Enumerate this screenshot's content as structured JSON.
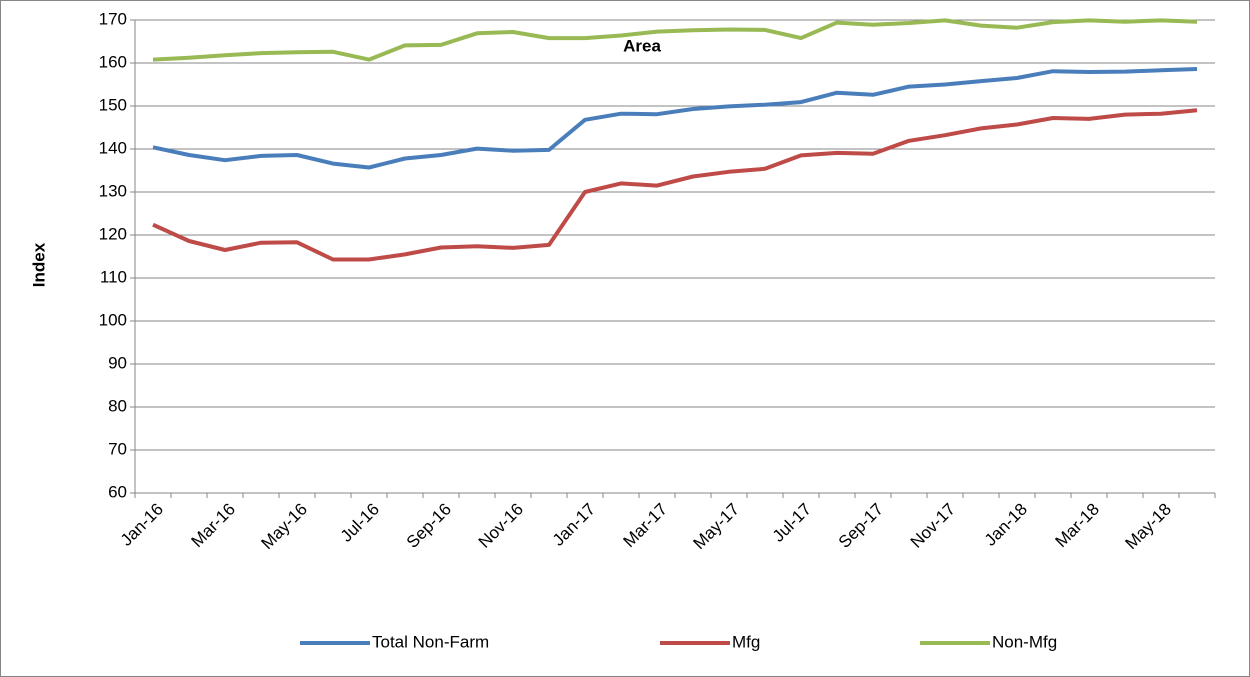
{
  "chart_data": {
    "type": "line",
    "title": "Area",
    "y_label": "Index",
    "categories": [
      "Jan-16",
      null,
      "Mar-16",
      null,
      "May-16",
      null,
      "Jul-16",
      null,
      "Sep-16",
      null,
      "Nov-16",
      null,
      "Jan-17",
      null,
      "Mar-17",
      null,
      "May-17",
      null,
      "Jul-17",
      null,
      "Sep-17",
      null,
      "Nov-17",
      null,
      "Jan-18",
      null,
      "Mar-18",
      null,
      "May-18",
      null
    ],
    "series": [
      {
        "name": "Total Non-Farm",
        "color": "#4a7ebb",
        "values": [
          140.4,
          138.6,
          137.4,
          138.4,
          138.6,
          136.6,
          135.7,
          137.8,
          138.6,
          140.1,
          139.6,
          139.8,
          146.8,
          148.2,
          148.1,
          149.3,
          149.9,
          150.3,
          150.9,
          153.1,
          152.6,
          154.5,
          155.0,
          155.8,
          156.5,
          158.1,
          157.9,
          158.0,
          158.3,
          158.6
        ]
      },
      {
        "name": "Mfg",
        "color": "#be4b48",
        "values": [
          122.4,
          118.6,
          116.5,
          118.2,
          118.3,
          114.3,
          114.3,
          115.5,
          117.1,
          117.4,
          117.0,
          117.7,
          130.0,
          132.0,
          131.5,
          133.6,
          134.7,
          135.4,
          138.5,
          139.1,
          138.9,
          141.9,
          143.2,
          144.8,
          145.7,
          147.2,
          147.0,
          148.0,
          148.2,
          149.0
        ]
      },
      {
        "name": "Non-Mfg",
        "color": "#98b954",
        "values": [
          160.8,
          161.2,
          161.8,
          162.3,
          162.5,
          162.6,
          160.8,
          164.1,
          164.2,
          166.9,
          167.2,
          165.8,
          165.8,
          166.4,
          167.3,
          167.6,
          167.8,
          167.7,
          165.8,
          169.4,
          168.9,
          169.3,
          169.9,
          168.7,
          168.2,
          169.5,
          169.9,
          169.6,
          169.9,
          169.6
        ]
      }
    ],
    "ylim": [
      60,
      170
    ],
    "yticks": [
      60,
      70,
      80,
      90,
      100,
      110,
      120,
      130,
      140,
      150,
      160,
      170
    ],
    "grid": true,
    "legend": "bottom"
  }
}
